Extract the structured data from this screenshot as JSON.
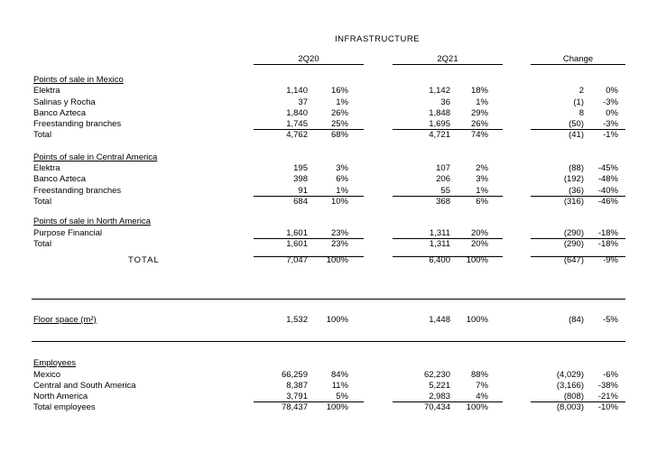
{
  "title": "INFRASTRUCTURE",
  "columns": [
    "2Q20",
    "2Q21",
    "Change"
  ],
  "rows": [
    {
      "t": "sec",
      "label": "Points of sale in Mexico"
    },
    {
      "t": "d",
      "label": "Elektra",
      "c": [
        "1,140",
        "16%",
        "1,142",
        "18%",
        "2",
        "0%"
      ]
    },
    {
      "t": "d",
      "label": "Salinas y Rocha",
      "c": [
        "37",
        "1%",
        "36",
        "1%",
        "(1)",
        "-3%"
      ]
    },
    {
      "t": "d",
      "label": "Banco Azteca",
      "c": [
        "1,840",
        "26%",
        "1,848",
        "29%",
        "8",
        "0%"
      ]
    },
    {
      "t": "d",
      "u": true,
      "label": "Freestanding branches",
      "c": [
        "1,745",
        "25%",
        "1,695",
        "26%",
        "(50)",
        "-3%"
      ]
    },
    {
      "t": "d",
      "label": "Total",
      "c": [
        "4,762",
        "68%",
        "4,721",
        "74%",
        "(41)",
        "-1%"
      ]
    },
    {
      "t": "sp",
      "h": 12
    },
    {
      "t": "sec",
      "label": "Points of sale in Central America"
    },
    {
      "t": "d",
      "label": "Elektra",
      "c": [
        "195",
        "3%",
        "107",
        "2%",
        "(88)",
        "-45%"
      ]
    },
    {
      "t": "d",
      "label": "Banco Azteca",
      "c": [
        "398",
        "6%",
        "206",
        "3%",
        "(192)",
        "-48%"
      ]
    },
    {
      "t": "d",
      "u": true,
      "label": "Freestanding branches",
      "c": [
        "91",
        "1%",
        "55",
        "1%",
        "(36)",
        "-40%"
      ]
    },
    {
      "t": "d",
      "label": "Total",
      "c": [
        "684",
        "10%",
        "368",
        "6%",
        "(316)",
        "-46%"
      ]
    },
    {
      "t": "sp",
      "h": 10
    },
    {
      "t": "sec",
      "label": "Points of sale in North America"
    },
    {
      "t": "d",
      "u": true,
      "label": "Purpose Financial",
      "c": [
        "1,601",
        "23%",
        "1,311",
        "20%",
        "(290)",
        "-18%"
      ]
    },
    {
      "t": "d",
      "label": "Total",
      "c": [
        "1,601",
        "23%",
        "1,311",
        "20%",
        "(290)",
        "-18%"
      ]
    },
    {
      "t": "sp",
      "h": 6,
      "u": true
    },
    {
      "t": "grand",
      "label": "TOTAL",
      "c": [
        "7,047",
        "100%",
        "6,400",
        "100%",
        "(647)",
        "-9%"
      ]
    },
    {
      "t": "sp",
      "h": 34.5
    },
    {
      "t": "hr"
    },
    {
      "t": "sp",
      "h": 18
    },
    {
      "t": "secd",
      "label": "Floor space (m²)",
      "c": [
        "1,532",
        "100%",
        "1,448",
        "100%",
        "(84)",
        "-5%"
      ]
    },
    {
      "t": "sp",
      "h": 16
    },
    {
      "t": "hr"
    },
    {
      "t": "sp",
      "h": 19
    },
    {
      "t": "sec",
      "label": "Employees"
    },
    {
      "t": "d",
      "label": "Mexico",
      "c": [
        "66,259",
        "84%",
        "62,230",
        "88%",
        "(4,029)",
        "-6%"
      ]
    },
    {
      "t": "d",
      "label": "Central and South America",
      "c": [
        "8,387",
        "11%",
        "5,221",
        "7%",
        "(3,166)",
        "-38%"
      ]
    },
    {
      "t": "d",
      "u": true,
      "label": "North America",
      "c": [
        "3,791",
        "5%",
        "2,983",
        "4%",
        "(808)",
        "-21%"
      ]
    },
    {
      "t": "d",
      "label": "Total employees",
      "c": [
        "78,437",
        "100%",
        "70,434",
        "100%",
        "(8,003)",
        "-10%"
      ]
    }
  ]
}
